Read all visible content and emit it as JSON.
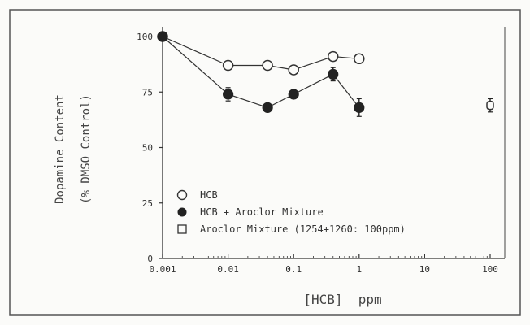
{
  "chart_data": {
    "type": "scatter",
    "xlabel": "[HCB]  ppm",
    "ylabel_line1": "Dopamine Content",
    "ylabel_line2": "(% DMSO Control)",
    "xscale": "log",
    "xlim": [
      0.001,
      100
    ],
    "ylim": [
      0,
      100
    ],
    "x_ticks": [
      0.001,
      0.01,
      0.1,
      1,
      10,
      100
    ],
    "x_tick_labels": [
      "0.001",
      "0.01",
      "0.1",
      "1",
      "10",
      "100"
    ],
    "y_ticks": [
      0,
      25,
      50,
      75,
      100
    ],
    "y_tick_labels": [
      "0",
      "25",
      "50",
      "75",
      "100"
    ],
    "grid": false,
    "legend_position": "bottom-left",
    "series": [
      {
        "name": "HCB",
        "marker": "open-circle",
        "x": [
          0.001,
          0.01,
          0.04,
          0.1,
          0.4,
          1
        ],
        "y": [
          100,
          87,
          87,
          85,
          91,
          90
        ],
        "err": [
          0,
          0,
          0,
          0,
          0,
          0
        ]
      },
      {
        "name": "HCB + Aroclor Mixture",
        "marker": "filled-circle",
        "x": [
          0.001,
          0.01,
          0.04,
          0.1,
          0.4,
          1
        ],
        "y": [
          100,
          74,
          68,
          74,
          83,
          68
        ],
        "err": [
          0,
          3,
          0,
          0,
          3,
          4
        ]
      },
      {
        "name": "Aroclor Mixture (1254+1260: 100ppm)",
        "marker": "open-square",
        "x": [
          100
        ],
        "y": [
          69
        ],
        "err": [
          3
        ]
      }
    ]
  }
}
